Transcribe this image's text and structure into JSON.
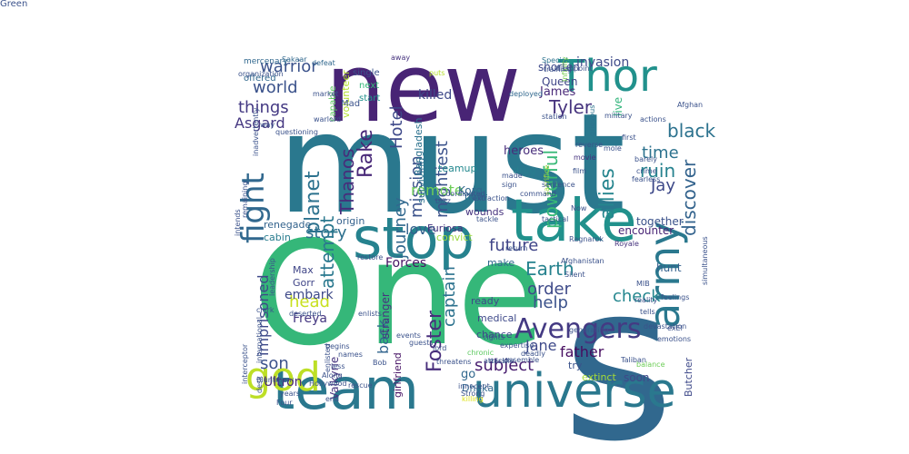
{
  "words": [
    {
      "text": "must",
      "color": "#2a788e"
    },
    {
      "text": "One",
      "color": "#35b779"
    },
    {
      "text": "s",
      "color": "#31688e"
    },
    {
      "text": "new",
      "color": "#482475"
    },
    {
      "text": "team",
      "color": "#2a788e"
    },
    {
      "text": "universe",
      "color": "#2a788e"
    },
    {
      "text": "stop",
      "color": "#26828e"
    },
    {
      "text": "take",
      "color": "#21918c"
    },
    {
      "text": "Thor",
      "color": "#21918c"
    },
    {
      "text": "god",
      "color": "#bddf26"
    },
    {
      "text": "fight",
      "color": "#31688e"
    },
    {
      "text": "army",
      "color": "#2a788e"
    },
    {
      "text": "Avengers",
      "color": "#443a83"
    },
    {
      "text": "warrior",
      "color": "#3b528b"
    },
    {
      "text": "world",
      "color": "#3b528b"
    },
    {
      "text": "things",
      "color": "#443983"
    },
    {
      "text": "Asgard",
      "color": "#453781"
    },
    {
      "text": "planet",
      "color": "#2c728e"
    },
    {
      "text": "Thanos",
      "color": "#472d7b"
    },
    {
      "text": "Rake",
      "color": "#482878"
    },
    {
      "text": "Hotel",
      "color": "#3e4989"
    },
    {
      "text": "story",
      "color": "#2d708e"
    },
    {
      "text": "attempt",
      "color": "#2a788e"
    },
    {
      "text": "mission",
      "color": "#3b528b"
    },
    {
      "text": "mightiest",
      "color": "#3b528b"
    },
    {
      "text": "journey",
      "color": "#31688e"
    },
    {
      "text": "Tyler",
      "color": "#46337e"
    },
    {
      "text": "James",
      "color": "#482878"
    },
    {
      "text": "Queen",
      "color": "#404688"
    },
    {
      "text": "shorten",
      "color": "#3e4989"
    },
    {
      "text": "invasion",
      "color": "#3e4a89"
    },
    {
      "text": "black",
      "color": "#2c728e"
    },
    {
      "text": "live",
      "color": "#31b57b"
    },
    {
      "text": "discover",
      "color": "#33638d"
    },
    {
      "text": "time",
      "color": "#2c728e"
    },
    {
      "text": "ruin",
      "color": "#26828e"
    },
    {
      "text": "Jay",
      "color": "#3e4989"
    },
    {
      "text": "allies",
      "color": "#25858e"
    },
    {
      "text": "powerful",
      "color": "#38b977"
    },
    {
      "text": "remote",
      "color": "#6ece58"
    },
    {
      "text": "love",
      "color": "#34618d"
    },
    {
      "text": "future",
      "color": "#404588"
    },
    {
      "text": "Earth",
      "color": "#26828e"
    },
    {
      "text": "order",
      "color": "#3e4a89"
    },
    {
      "text": "help",
      "color": "#3b528b"
    },
    {
      "text": "captain",
      "color": "#2c728e"
    },
    {
      "text": "check",
      "color": "#24868e"
    },
    {
      "text": "father",
      "color": "#470d60"
    },
    {
      "text": "Jane",
      "color": "#3e4989"
    },
    {
      "text": "Foster",
      "color": "#472d7b"
    },
    {
      "text": "subject",
      "color": "#481d6f"
    },
    {
      "text": "back",
      "color": "#32648e"
    },
    {
      "text": "son",
      "color": "#3b528b"
    },
    {
      "text": "head",
      "color": "#c8e020"
    },
    {
      "text": "imprisoned",
      "color": "#3e4989"
    },
    {
      "text": "Forces",
      "color": "#471365"
    },
    {
      "text": "embark",
      "color": "#3e4989"
    },
    {
      "text": "Freya",
      "color": "#453781"
    },
    {
      "text": "Ultron",
      "color": "#482878"
    },
    {
      "text": "killed",
      "color": "#3e4989"
    },
    {
      "text": "heroes",
      "color": "#472d7b"
    },
    {
      "text": "drug",
      "color": "#287d8e"
    },
    {
      "text": "convict",
      "color": "#9bd93c"
    },
    {
      "text": "Korg",
      "color": "#31688e"
    },
    {
      "text": "hunt",
      "color": "#34618d"
    },
    {
      "text": "encounter",
      "color": "#482475"
    },
    {
      "text": "together",
      "color": "#3b528b"
    },
    {
      "text": "soon",
      "color": "#3e4989"
    },
    {
      "text": "try",
      "color": "#3b528b"
    },
    {
      "text": "extinct",
      "color": "#a5db36"
    },
    {
      "text": "go",
      "color": "#31688e"
    },
    {
      "text": "Max",
      "color": "#404688"
    },
    {
      "text": "Gorr",
      "color": "#404688"
    },
    {
      "text": "renegade",
      "color": "#33638d"
    },
    {
      "text": "origin",
      "color": "#34618d"
    },
    {
      "text": "cabin",
      "color": "#287c8e"
    },
    {
      "text": "Furiosa",
      "color": "#46327e"
    },
    {
      "text": "surviving",
      "color": "#2c728e"
    },
    {
      "text": "Bangladesh",
      "color": "#2c728e"
    },
    {
      "text": "teamup",
      "color": "#23888e"
    },
    {
      "text": "wounds",
      "color": "#46337e"
    },
    {
      "text": "near",
      "color": "#31688e"
    },
    {
      "text": "make",
      "color": "#31688e"
    },
    {
      "text": "ready",
      "color": "#3e4989"
    },
    {
      "text": "stranger",
      "color": "#46337e"
    },
    {
      "text": "girlfriend",
      "color": "#471365"
    },
    {
      "text": "medical",
      "color": "#3e4989"
    },
    {
      "text": "chance",
      "color": "#3e4989"
    },
    {
      "text": "Dhaka",
      "color": "#31688e"
    },
    {
      "text": "Valkyrie",
      "color": "#46337e"
    },
    {
      "text": "Butcher",
      "color": "#3e4989"
    },
    {
      "text": "volunteer",
      "color": "#b2dd2d"
    },
    {
      "text": "capable",
      "color": "#5ec962"
    },
    {
      "text": "start",
      "color": "#21918c"
    },
    {
      "text": "Mad",
      "color": "#3b528b"
    },
    {
      "text": "next",
      "color": "#35b779"
    },
    {
      "text": "single",
      "color": "#3b528b"
    },
    {
      "text": "offered",
      "color": "#31688e"
    },
    {
      "text": "mercenary",
      "color": "#31688e"
    },
    {
      "text": "Sakaar",
      "color": "#31688e"
    },
    {
      "text": "defeat",
      "color": "#31688e"
    },
    {
      "text": "away",
      "color": "#46337e"
    },
    {
      "text": "puts",
      "color": "#b5de2b"
    },
    {
      "text": "training",
      "color": "#3b528b"
    },
    {
      "text": "Special",
      "color": "#2c728e"
    },
    {
      "text": "Infinity",
      "color": "#7ad151"
    },
    {
      "text": "Afghan",
      "color": "#3b528b"
    },
    {
      "text": "military",
      "color": "#3b528b"
    },
    {
      "text": "actions",
      "color": "#3b528b"
    },
    {
      "text": "station",
      "color": "#3b528b"
    },
    {
      "text": "deployed",
      "color": "#31688e"
    },
    {
      "text": "first",
      "color": "#3b528b"
    },
    {
      "text": "mole",
      "color": "#3b528b"
    },
    {
      "text": "barely",
      "color": "#3b528b"
    },
    {
      "text": "crime",
      "color": "#3b528b"
    },
    {
      "text": "grievous",
      "color": "#2c728e"
    },
    {
      "text": "reverse",
      "color": "#3b528b"
    },
    {
      "text": "movie",
      "color": "#46337e"
    },
    {
      "text": "film",
      "color": "#3b528b"
    },
    {
      "text": "fearless",
      "color": "#3b528b"
    },
    {
      "text": "sacrifice",
      "color": "#a0da39"
    },
    {
      "text": "command",
      "color": "#3b528b"
    },
    {
      "text": "tactical",
      "color": "#3b528b"
    },
    {
      "text": "Royale",
      "color": "#46337e"
    },
    {
      "text": "Ragnarok",
      "color": "#3b528b"
    },
    {
      "text": "Afghanistan",
      "color": "#3b528b"
    },
    {
      "text": "Silent",
      "color": "#3b528b"
    },
    {
      "text": "MIB",
      "color": "#3b528b"
    },
    {
      "text": "simultaneous",
      "color": "#3b528b"
    },
    {
      "text": "feelings",
      "color": "#3b528b"
    },
    {
      "text": "reality",
      "color": "#3b528b"
    },
    {
      "text": "tells",
      "color": "#3b528b"
    },
    {
      "text": "devastation",
      "color": "#3b528b"
    },
    {
      "text": "emotions",
      "color": "#3b528b"
    },
    {
      "text": "balance",
      "color": "#6ece58"
    },
    {
      "text": "Taliban",
      "color": "#3b528b"
    },
    {
      "text": "generating",
      "color": "#3b528b"
    },
    {
      "text": "deadly",
      "color": "#3b528b"
    },
    {
      "text": "assemble",
      "color": "#3b528b"
    },
    {
      "text": "expertise",
      "color": "#3b528b"
    },
    {
      "text": "chronic",
      "color": "#5ec962"
    },
    {
      "text": "attack",
      "color": "#3b528b"
    },
    {
      "text": "rights",
      "color": "#3b528b"
    },
    {
      "text": "missile",
      "color": "#3b528b"
    },
    {
      "text": "Strong",
      "color": "#3b528b"
    },
    {
      "text": "threatens",
      "color": "#3b528b"
    },
    {
      "text": "innocent",
      "color": "#3b528b"
    },
    {
      "text": "killing",
      "color": "#dfe318"
    },
    {
      "text": "lord",
      "color": "#3b528b"
    },
    {
      "text": "Bob",
      "color": "#3b528b"
    },
    {
      "text": "rescue",
      "color": "#3b528b"
    },
    {
      "text": "end",
      "color": "#3b528b"
    },
    {
      "text": "Hollywood",
      "color": "#3b528b"
    },
    {
      "text": "enlisted",
      "color": "#3b528b"
    },
    {
      "text": "Along",
      "color": "#3b528b"
    },
    {
      "text": "less",
      "color": "#3b528b"
    },
    {
      "text": "names",
      "color": "#3b528b"
    },
    {
      "text": "begins",
      "color": "#3b528b"
    },
    {
      "text": "desk",
      "color": "#3b528b"
    },
    {
      "text": "Bluntman",
      "color": "#3b528b"
    },
    {
      "text": "interceptor",
      "color": "#3b528b"
    },
    {
      "text": "deserted",
      "color": "#3b528b"
    },
    {
      "text": "events",
      "color": "#3b528b"
    },
    {
      "text": "guests",
      "color": "#3b528b"
    },
    {
      "text": "international",
      "color": "#3b528b"
    },
    {
      "text": "years",
      "color": "#3b528b"
    },
    {
      "text": "Four",
      "color": "#3b528b"
    },
    {
      "text": "clerk",
      "color": "#3b528b"
    },
    {
      "text": "leadership",
      "color": "#3b528b"
    },
    {
      "text": "intends",
      "color": "#3b528b"
    },
    {
      "text": "remaining",
      "color": "#3b528b"
    },
    {
      "text": "way",
      "color": "#3b528b"
    },
    {
      "text": "questioning",
      "color": "#3b528b"
    },
    {
      "text": "inadvertently",
      "color": "#3b528b"
    },
    {
      "text": "organization",
      "color": "#3b528b"
    },
    {
      "text": "market",
      "color": "#3b528b"
    },
    {
      "text": "warlord",
      "color": "#3b528b"
    },
    {
      "text": "restore",
      "color": "#3b528b"
    },
    {
      "text": "coordinated",
      "color": "#3b528b"
    },
    {
      "text": "blitz",
      "color": "#3b528b"
    },
    {
      "text": "extraction",
      "color": "#3b528b"
    },
    {
      "text": "sign",
      "color": "#3b528b"
    },
    {
      "text": "made",
      "color": "#3b528b"
    },
    {
      "text": "tackle",
      "color": "#3b528b"
    },
    {
      "text": "return",
      "color": "#3b528b"
    },
    {
      "text": "sentence",
      "color": "#3b528b"
    },
    {
      "text": "enlists",
      "color": "#3b528b"
    },
    {
      "text": "flashpoint",
      "color": "#3b528b"
    },
    {
      "text": "Now",
      "color": "#3b528b"
    },
    {
      "text": "exEl",
      "color": "#3b528b"
    },
    {
      "text": "Green",
      "color": "#3b528b"
    }
  ]
}
